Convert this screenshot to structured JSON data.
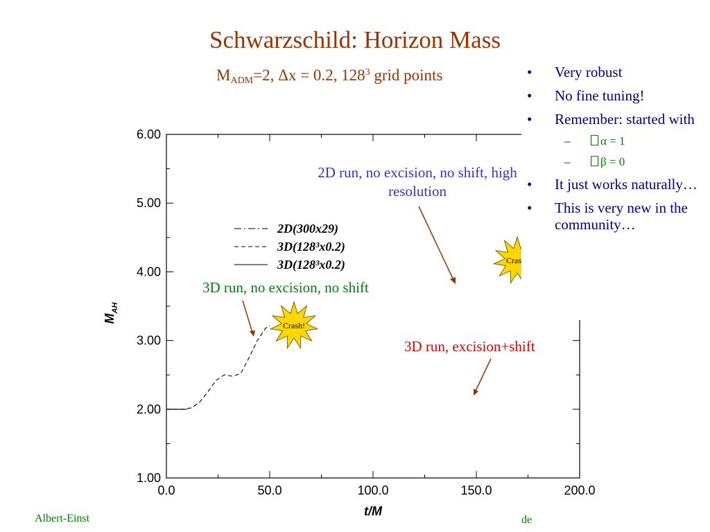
{
  "slide": {
    "title": "Schwarzschild: Horizon Mass",
    "subtitle": {
      "m": "M",
      "m_sub": "ADM",
      "part1": "=2, Δx = 0.2, 128",
      "exp": "3",
      "part2": " grid points"
    },
    "bullets": [
      {
        "text": "Very robust"
      },
      {
        "text": "No fine tuning!"
      },
      {
        "text": "Remember: started with"
      },
      {
        "sub": true,
        "text": "α = 1"
      },
      {
        "sub": true,
        "text": "β = 0"
      },
      {
        "text": "It just works naturally…"
      },
      {
        "text": "This is very new in the community…"
      }
    ],
    "footer_left": "Albert-Einst",
    "footer_right": "de",
    "colors": {
      "title": "#993300",
      "bullets": "#000080",
      "green": "#008000",
      "blue_annot": "#3333cc",
      "red_annot": "#e00000",
      "starburst": "#ffd700"
    }
  },
  "chart_data": {
    "type": "line",
    "title": "",
    "xlabel": "t/M",
    "ylabel": "M",
    "ylabel_sub": "AH",
    "xlim": [
      0,
      200
    ],
    "ylim": [
      1,
      6
    ],
    "xticks": [
      "0.0",
      "50.0",
      "100.0",
      "150.0",
      "200.0"
    ],
    "yticks": [
      "1.00",
      "2.00",
      "3.00",
      "4.00",
      "5.00",
      "6.00"
    ],
    "grid": false,
    "legend": [
      {
        "label": "2D(300x29)",
        "style": "dash-dot"
      },
      {
        "label": "3D(128³x0.2)",
        "style": "dashed"
      },
      {
        "label": "3D(128³x0.2)",
        "style": "solid"
      }
    ],
    "series": [
      {
        "style": "dashed",
        "x": [
          0,
          4,
          8,
          12,
          16,
          20,
          24,
          28,
          32,
          36,
          40,
          44,
          48,
          50
        ],
        "y": [
          2.0,
          2.0,
          2.0,
          2.02,
          2.1,
          2.25,
          2.42,
          2.5,
          2.48,
          2.52,
          2.75,
          3.0,
          3.18,
          3.22
        ]
      },
      {
        "style": "solid",
        "x": [
          0,
          4,
          8,
          10
        ],
        "y": [
          2.0,
          2.0,
          2.0,
          2.0
        ]
      }
    ],
    "annotations": [
      {
        "text": "2D run, no excision, no shift, high resolution",
        "color": "#3333cc"
      },
      {
        "text": "3D run, no excision, no shift",
        "color": "#008000"
      },
      {
        "text": "3D run, excision+shift",
        "color": "#e00000"
      }
    ],
    "crash_labels": [
      "Crash!",
      "Crash!"
    ]
  }
}
